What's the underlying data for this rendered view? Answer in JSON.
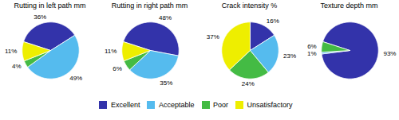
{
  "chart_data": [
    {
      "type": "pie",
      "title": "Rutting in left path mm",
      "categories": [
        "Excellent",
        "Acceptable",
        "Poor",
        "Unsatisfactory"
      ],
      "values": [
        36,
        49,
        4,
        11
      ],
      "value_labels": [
        "36%",
        "49%",
        "4%",
        "11%"
      ],
      "colors": [
        "#3333aa",
        "#55bbee",
        "#44bb44",
        "#eeee00"
      ],
      "data_labels": true,
      "legend": "bottom"
    },
    {
      "type": "pie",
      "title": "Rutting in right path mm",
      "categories": [
        "Excellent",
        "Acceptable",
        "Poor",
        "Unsatisfactory"
      ],
      "values": [
        48,
        35,
        6,
        11
      ],
      "value_labels": [
        "48%",
        "35%",
        "6%",
        "11%"
      ],
      "colors": [
        "#3333aa",
        "#55bbee",
        "#44bb44",
        "#eeee00"
      ],
      "data_labels": true,
      "legend": "bottom"
    },
    {
      "type": "pie",
      "title": "Crack intensity %",
      "categories": [
        "Excellent",
        "Acceptable",
        "Poor",
        "Unsatisfactory"
      ],
      "values": [
        16,
        23,
        24,
        37
      ],
      "value_labels": [
        "16%",
        "23%",
        "24%",
        "37%"
      ],
      "colors": [
        "#3333aa",
        "#55bbee",
        "#44bb44",
        "#eeee00"
      ],
      "data_labels": true,
      "legend": "bottom"
    },
    {
      "type": "pie",
      "title": "Texture depth mm",
      "categories": [
        "Excellent",
        "Acceptable",
        "Poor"
      ],
      "values": [
        93,
        1,
        6
      ],
      "value_labels": [
        "93%",
        "1%",
        "6%"
      ],
      "colors": [
        "#3333aa",
        "#55bbee",
        "#44bb44"
      ],
      "data_labels": true,
      "legend": "bottom"
    }
  ]
}
